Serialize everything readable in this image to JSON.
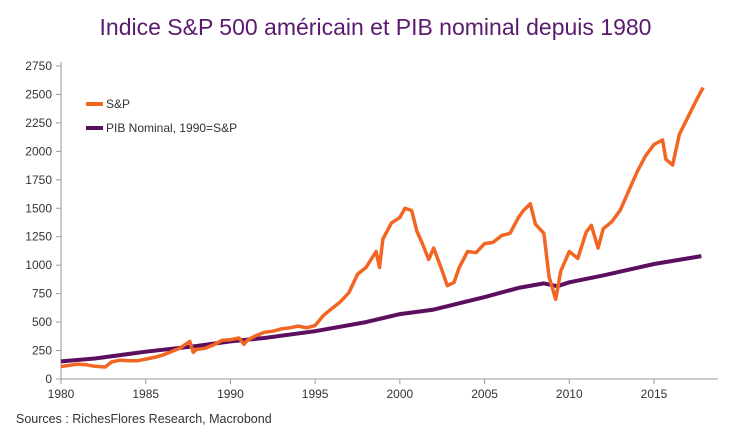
{
  "chart_data": {
    "type": "line",
    "title": "Indice S&P 500 américain et PIB nominal depuis 1980",
    "source": "Sources : RichesFlores Research, Macrobond",
    "xlim": [
      1980,
      2018
    ],
    "ylim": [
      0,
      2750
    ],
    "x_ticks": [
      1980,
      1985,
      1990,
      1995,
      2000,
      2005,
      2010,
      2015
    ],
    "y_ticks": [
      0,
      250,
      500,
      750,
      1000,
      1250,
      1500,
      1750,
      2000,
      2250,
      2500,
      2750
    ],
    "grid": false,
    "legend_position": "top-left",
    "series": [
      {
        "name": "S&P",
        "color": "#f26522",
        "x": [
          1980,
          1980.5,
          1981,
          1981.5,
          1982,
          1982.6,
          1983,
          1983.5,
          1984,
          1984.5,
          1985,
          1985.5,
          1986,
          1986.5,
          1987,
          1987.6,
          1987.8,
          1988,
          1988.5,
          1989,
          1989.5,
          1990,
          1990.5,
          1990.8,
          1991,
          1991.5,
          1992,
          1992.5,
          1993,
          1993.5,
          1994,
          1994.5,
          1995,
          1995.5,
          1996,
          1996.5,
          1997,
          1997.5,
          1998,
          1998.6,
          1998.8,
          1999,
          1999.5,
          2000,
          2000.3,
          2000.7,
          2001,
          2001.3,
          2001.7,
          2002,
          2002.5,
          2002.8,
          2003.2,
          2003.5,
          2004,
          2004.5,
          2005,
          2005.5,
          2006,
          2006.5,
          2007,
          2007.3,
          2007.7,
          2008,
          2008.5,
          2008.8,
          2009.2,
          2009.5,
          2010,
          2010.5,
          2011,
          2011.3,
          2011.7,
          2012,
          2012.5,
          2013,
          2013.5,
          2014,
          2014.5,
          2015,
          2015.5,
          2015.7,
          2016.1,
          2016.5,
          2017,
          2017.5,
          2017.9
        ],
        "values": [
          110,
          120,
          130,
          125,
          112,
          105,
          150,
          165,
          160,
          160,
          175,
          190,
          210,
          240,
          270,
          330,
          235,
          260,
          270,
          300,
          340,
          345,
          360,
          305,
          340,
          380,
          410,
          420,
          440,
          450,
          465,
          450,
          470,
          560,
          620,
          680,
          760,
          920,
          980,
          1120,
          980,
          1230,
          1370,
          1420,
          1500,
          1480,
          1300,
          1200,
          1050,
          1150,
          950,
          820,
          850,
          980,
          1120,
          1110,
          1190,
          1200,
          1260,
          1280,
          1420,
          1480,
          1540,
          1360,
          1280,
          900,
          700,
          950,
          1120,
          1060,
          1290,
          1350,
          1150,
          1320,
          1380,
          1480,
          1650,
          1820,
          1960,
          2060,
          2100,
          1930,
          1880,
          2150,
          2300,
          2450,
          2560
        ]
      },
      {
        "name": "PIB Nominal, 1990=S&P",
        "color": "#5c0f5e",
        "x": [
          1980,
          1982,
          1985,
          1988,
          1990,
          1992,
          1995,
          1998,
          2000,
          2002,
          2005,
          2007,
          2008.5,
          2009.3,
          2010,
          2012,
          2015,
          2017.8
        ],
        "values": [
          155,
          180,
          240,
          290,
          330,
          360,
          420,
          500,
          570,
          610,
          720,
          800,
          840,
          815,
          850,
          910,
          1010,
          1080
        ]
      }
    ]
  }
}
